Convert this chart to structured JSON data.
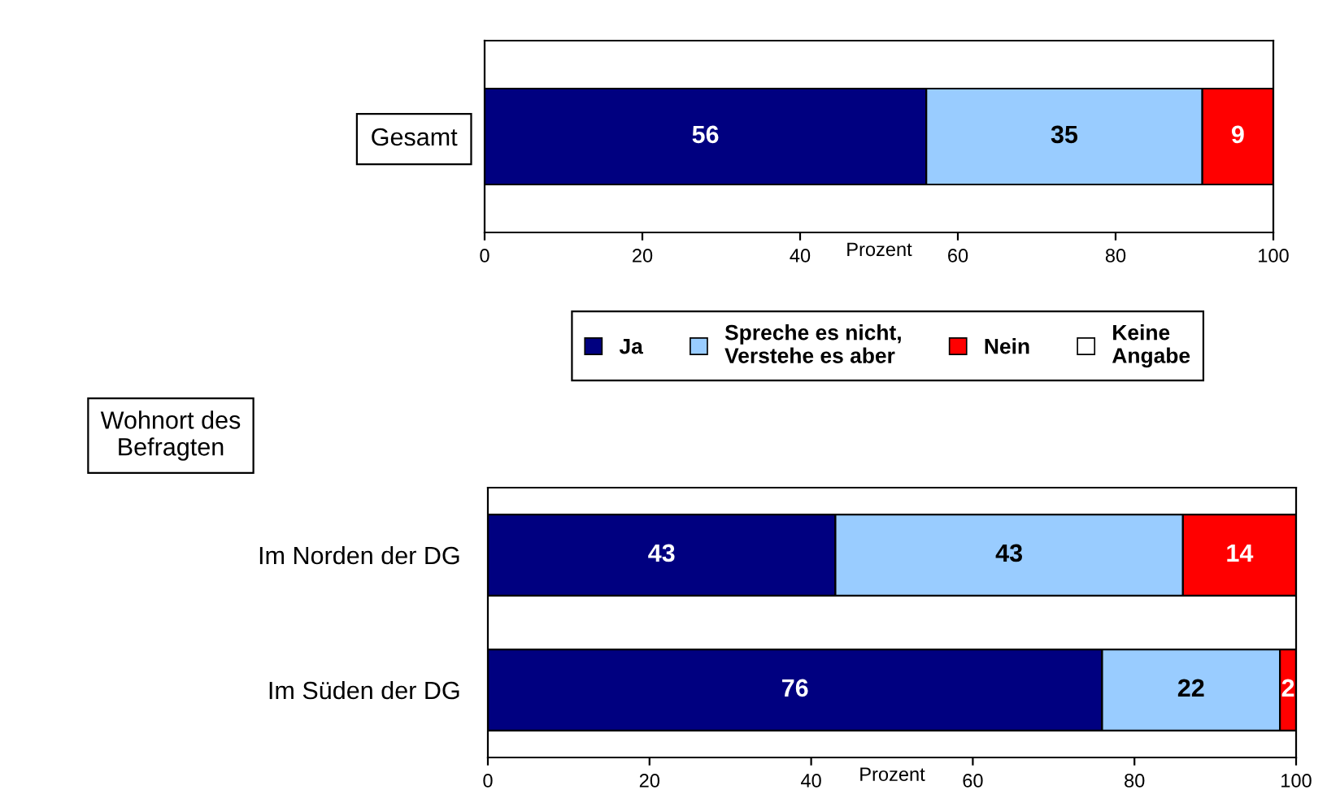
{
  "chart_data": [
    {
      "type": "bar",
      "orientation": "horizontal",
      "stacked": true,
      "categories": [
        "Gesamt"
      ],
      "xlabel": "Prozent",
      "xlim": [
        0,
        100
      ],
      "xticks": [
        0,
        20,
        40,
        60,
        80,
        100
      ],
      "data_labels": true,
      "grid": false,
      "legend": "bottom",
      "series": [
        {
          "name": "Ja",
          "color": "#000080",
          "values": [
            56
          ]
        },
        {
          "name": "Spreche es nicht,\nVerstehe es aber",
          "color": "#99ccff",
          "values": [
            35
          ]
        },
        {
          "name": "Nein",
          "color": "#ff0000",
          "values": [
            9
          ]
        },
        {
          "name": "Keine\nAngabe",
          "color": "#ffffff",
          "values": [
            null
          ]
        }
      ]
    },
    {
      "type": "bar",
      "orientation": "horizontal",
      "stacked": true,
      "ylabel": "Wohnort des\nBefragten",
      "categories": [
        "Im Norden der DG",
        "Im Süden der DG"
      ],
      "xlabel": "Prozent",
      "xlim": [
        0,
        100
      ],
      "xticks": [
        0,
        20,
        40,
        60,
        80,
        100
      ],
      "data_labels": true,
      "grid": false,
      "series": [
        {
          "color": "#000080",
          "values": [
            43,
            76
          ]
        },
        {
          "color": "#99ccff",
          "values": [
            43,
            22
          ]
        },
        {
          "color": "#ff0000",
          "values": [
            14,
            2
          ]
        },
        {
          "color": "#ffffff",
          "values": [
            null,
            null
          ]
        }
      ]
    }
  ]
}
